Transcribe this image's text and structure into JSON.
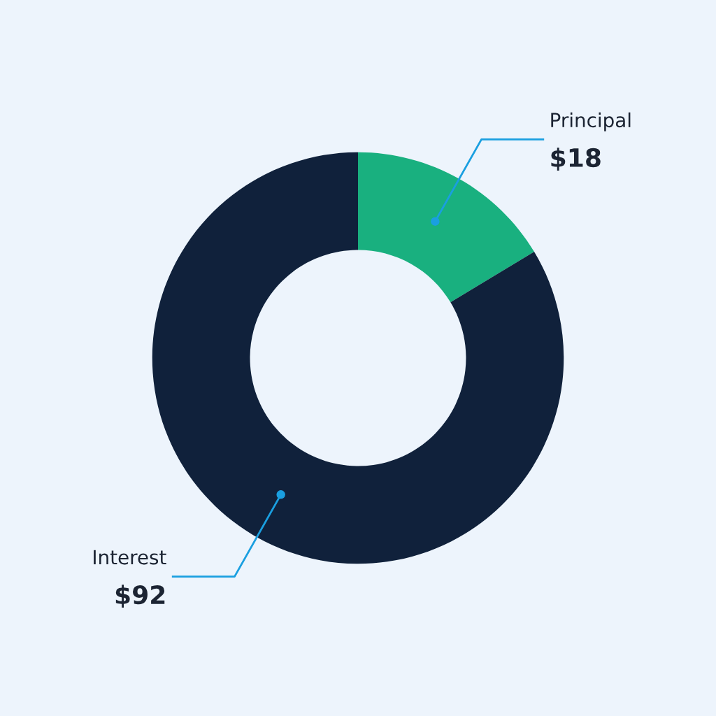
{
  "chart_data": {
    "type": "donut",
    "categories": [
      "Principal",
      "Interest"
    ],
    "values": [
      18,
      92
    ],
    "colors": [
      "#19b07f",
      "#10213b"
    ],
    "value_labels": [
      "$18",
      "$92"
    ],
    "legend": false
  }
}
